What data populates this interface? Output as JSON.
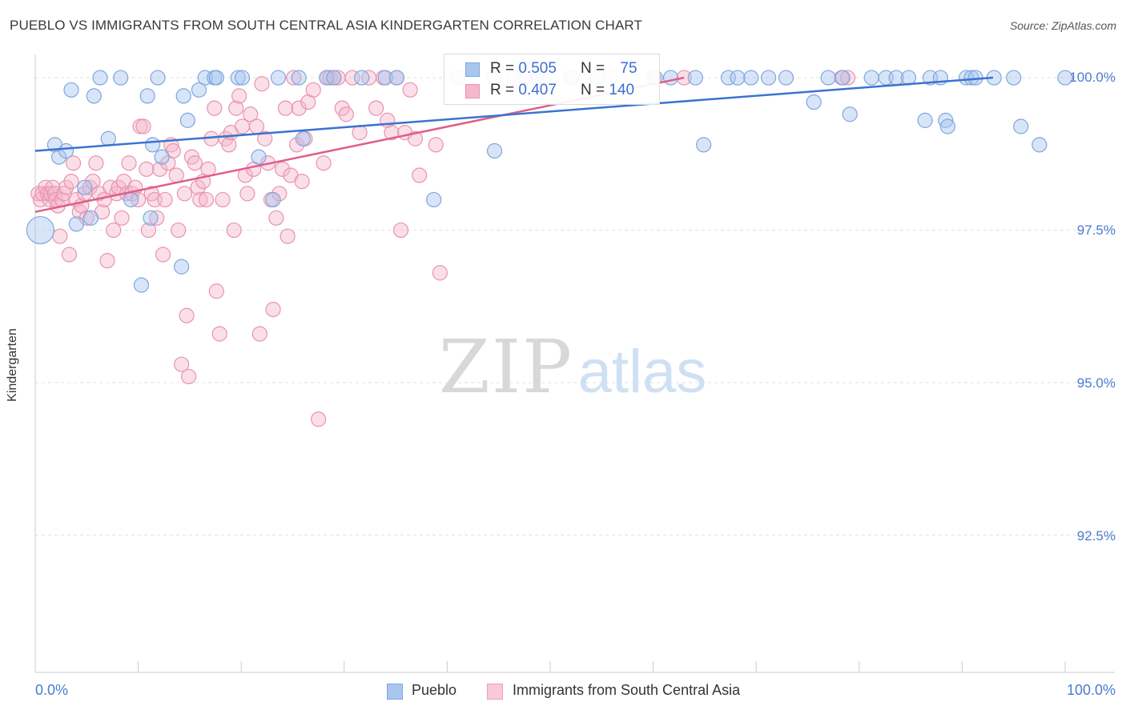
{
  "title": "PUEBLO VS IMMIGRANTS FROM SOUTH CENTRAL ASIA KINDERGARTEN CORRELATION CHART",
  "source": "Source: ZipAtlas.com",
  "watermark": {
    "zip": "ZIP",
    "atlas": "atlas"
  },
  "colors": {
    "blue_fill": "#a9c6ef",
    "blue_stroke": "#7fa6de",
    "blue_line": "#3b73d0",
    "pink_fill": "#f4b8cb",
    "pink_stroke": "#e993ae",
    "pink_line": "#e05d8a",
    "grid": "#e2e2e2",
    "axis_text": "#4a7bd0"
  },
  "legend": {
    "rows": [
      {
        "r_label": "R = ",
        "r_value": "0.505",
        "n_label": "N = ",
        "n_value": "75"
      },
      {
        "r_label": "R = ",
        "r_value": "0.407",
        "n_label": "N = ",
        "n_value": "140"
      }
    ]
  },
  "bottom_legend": {
    "series1": "Pueblo",
    "series2": "Immigrants from South Central Asia"
  },
  "axis": {
    "y_title": "Kindergarten",
    "x_min_label": "0.0%",
    "x_max_label": "100.0%",
    "y_tick_labels": [
      "100.0%",
      "97.5%",
      "95.0%",
      "92.5%"
    ]
  },
  "chart_data": {
    "type": "scatter",
    "title": "PUEBLO VS IMMIGRANTS FROM SOUTH CENTRAL ASIA KINDERGARTEN CORRELATION CHART",
    "xlabel": "",
    "ylabel": "Kindergarten",
    "xlim": [
      0,
      100
    ],
    "ylim": [
      90.25,
      100.25
    ],
    "y_ticks": [
      100.0,
      97.5,
      95.0,
      92.5
    ],
    "grid": true,
    "legend_position": "top-center",
    "series": [
      {
        "name": "Pueblo",
        "color": "blue",
        "R": 0.505,
        "N": 75,
        "trend": {
          "x": [
            0,
            93
          ],
          "y": [
            98.8,
            100.0
          ]
        },
        "points": [
          {
            "x": 0.5,
            "y": 97.5,
            "big": true
          },
          {
            "x": 1.9,
            "y": 98.9
          },
          {
            "x": 2.3,
            "y": 98.7
          },
          {
            "x": 3.0,
            "y": 98.8
          },
          {
            "x": 3.5,
            "y": 99.8
          },
          {
            "x": 4.0,
            "y": 97.6
          },
          {
            "x": 4.8,
            "y": 98.2
          },
          {
            "x": 5.4,
            "y": 97.7
          },
          {
            "x": 5.7,
            "y": 99.7
          },
          {
            "x": 6.3,
            "y": 100.0
          },
          {
            "x": 7.1,
            "y": 99.0
          },
          {
            "x": 8.3,
            "y": 100.0
          },
          {
            "x": 9.3,
            "y": 98.0
          },
          {
            "x": 10.3,
            "y": 96.6
          },
          {
            "x": 10.9,
            "y": 99.7
          },
          {
            "x": 11.2,
            "y": 97.7
          },
          {
            "x": 11.4,
            "y": 98.9
          },
          {
            "x": 11.9,
            "y": 100.0
          },
          {
            "x": 12.3,
            "y": 98.7
          },
          {
            "x": 14.2,
            "y": 96.9
          },
          {
            "x": 14.4,
            "y": 99.7
          },
          {
            "x": 14.8,
            "y": 99.3
          },
          {
            "x": 15.9,
            "y": 99.8
          },
          {
            "x": 16.5,
            "y": 100.0
          },
          {
            "x": 17.4,
            "y": 100.0
          },
          {
            "x": 17.6,
            "y": 100.0
          },
          {
            "x": 19.7,
            "y": 100.0
          },
          {
            "x": 20.1,
            "y": 100.0
          },
          {
            "x": 21.7,
            "y": 98.7
          },
          {
            "x": 23.1,
            "y": 98.0
          },
          {
            "x": 23.6,
            "y": 100.0
          },
          {
            "x": 25.6,
            "y": 100.0
          },
          {
            "x": 26.0,
            "y": 99.0
          },
          {
            "x": 28.3,
            "y": 100.0
          },
          {
            "x": 29.0,
            "y": 100.0
          },
          {
            "x": 31.7,
            "y": 100.0
          },
          {
            "x": 34.0,
            "y": 100.0
          },
          {
            "x": 35.1,
            "y": 100.0
          },
          {
            "x": 38.7,
            "y": 98.0
          },
          {
            "x": 41.0,
            "y": 100.0
          },
          {
            "x": 44.6,
            "y": 98.8
          },
          {
            "x": 48.8,
            "y": 100.0
          },
          {
            "x": 49.4,
            "y": 100.0
          },
          {
            "x": 52.0,
            "y": 100.0
          },
          {
            "x": 54.6,
            "y": 100.0
          },
          {
            "x": 60.2,
            "y": 100.0
          },
          {
            "x": 61.7,
            "y": 100.0
          },
          {
            "x": 64.1,
            "y": 100.0
          },
          {
            "x": 64.9,
            "y": 98.9
          },
          {
            "x": 67.3,
            "y": 100.0
          },
          {
            "x": 68.2,
            "y": 100.0
          },
          {
            "x": 69.5,
            "y": 100.0
          },
          {
            "x": 71.2,
            "y": 100.0
          },
          {
            "x": 72.9,
            "y": 100.0
          },
          {
            "x": 75.6,
            "y": 99.6
          },
          {
            "x": 77.0,
            "y": 100.0
          },
          {
            "x": 78.4,
            "y": 100.0
          },
          {
            "x": 79.1,
            "y": 99.4
          },
          {
            "x": 81.2,
            "y": 100.0
          },
          {
            "x": 82.6,
            "y": 100.0
          },
          {
            "x": 83.6,
            "y": 100.0
          },
          {
            "x": 84.8,
            "y": 100.0
          },
          {
            "x": 86.4,
            "y": 99.3
          },
          {
            "x": 86.9,
            "y": 100.0
          },
          {
            "x": 87.9,
            "y": 100.0
          },
          {
            "x": 88.4,
            "y": 99.3
          },
          {
            "x": 88.6,
            "y": 99.2
          },
          {
            "x": 90.4,
            "y": 100.0
          },
          {
            "x": 90.9,
            "y": 100.0
          },
          {
            "x": 91.3,
            "y": 100.0
          },
          {
            "x": 93.1,
            "y": 100.0
          },
          {
            "x": 95.0,
            "y": 100.0
          },
          {
            "x": 95.7,
            "y": 99.2
          },
          {
            "x": 97.5,
            "y": 98.9
          },
          {
            "x": 100.0,
            "y": 100.0
          }
        ]
      },
      {
        "name": "Immigrants from South Central Asia",
        "color": "pink",
        "R": 0.407,
        "N": 140,
        "trend": {
          "x": [
            0,
            63
          ],
          "y": [
            97.8,
            100.0
          ]
        },
        "points": [
          {
            "x": 0.3,
            "y": 98.1
          },
          {
            "x": 0.5,
            "y": 98.0
          },
          {
            "x": 0.7,
            "y": 98.1
          },
          {
            "x": 1.0,
            "y": 98.2
          },
          {
            "x": 1.2,
            "y": 98.1
          },
          {
            "x": 1.4,
            "y": 98.0
          },
          {
            "x": 1.5,
            "y": 98.1
          },
          {
            "x": 1.7,
            "y": 98.2
          },
          {
            "x": 1.9,
            "y": 98.1
          },
          {
            "x": 2.0,
            "y": 98.0
          },
          {
            "x": 2.2,
            "y": 97.9
          },
          {
            "x": 2.4,
            "y": 97.4
          },
          {
            "x": 2.6,
            "y": 98.0
          },
          {
            "x": 2.8,
            "y": 98.1
          },
          {
            "x": 3.0,
            "y": 98.2
          },
          {
            "x": 3.3,
            "y": 97.1
          },
          {
            "x": 3.5,
            "y": 98.3
          },
          {
            "x": 3.7,
            "y": 98.6
          },
          {
            "x": 4.0,
            "y": 98.0
          },
          {
            "x": 4.3,
            "y": 97.8
          },
          {
            "x": 4.5,
            "y": 97.9
          },
          {
            "x": 4.8,
            "y": 98.1
          },
          {
            "x": 5.0,
            "y": 97.7
          },
          {
            "x": 5.3,
            "y": 98.2
          },
          {
            "x": 5.6,
            "y": 98.3
          },
          {
            "x": 5.9,
            "y": 98.6
          },
          {
            "x": 6.2,
            "y": 98.1
          },
          {
            "x": 6.5,
            "y": 97.8
          },
          {
            "x": 6.7,
            "y": 98.0
          },
          {
            "x": 7.0,
            "y": 97.0
          },
          {
            "x": 7.3,
            "y": 98.2
          },
          {
            "x": 7.6,
            "y": 97.5
          },
          {
            "x": 7.9,
            "y": 98.1
          },
          {
            "x": 8.1,
            "y": 98.2
          },
          {
            "x": 8.4,
            "y": 97.7
          },
          {
            "x": 8.6,
            "y": 98.3
          },
          {
            "x": 8.9,
            "y": 98.1
          },
          {
            "x": 9.1,
            "y": 98.6
          },
          {
            "x": 9.4,
            "y": 98.1
          },
          {
            "x": 9.7,
            "y": 98.2
          },
          {
            "x": 10.0,
            "y": 98.0
          },
          {
            "x": 10.2,
            "y": 99.2
          },
          {
            "x": 10.5,
            "y": 99.2
          },
          {
            "x": 10.8,
            "y": 98.5
          },
          {
            "x": 11.0,
            "y": 97.5
          },
          {
            "x": 11.3,
            "y": 98.1
          },
          {
            "x": 11.6,
            "y": 98.0
          },
          {
            "x": 11.8,
            "y": 97.7
          },
          {
            "x": 12.1,
            "y": 98.5
          },
          {
            "x": 12.4,
            "y": 97.1
          },
          {
            "x": 12.6,
            "y": 98.0
          },
          {
            "x": 12.9,
            "y": 98.6
          },
          {
            "x": 13.2,
            "y": 98.9
          },
          {
            "x": 13.4,
            "y": 98.8
          },
          {
            "x": 13.7,
            "y": 98.4
          },
          {
            "x": 13.9,
            "y": 97.5
          },
          {
            "x": 14.2,
            "y": 95.3
          },
          {
            "x": 14.5,
            "y": 98.1
          },
          {
            "x": 14.7,
            "y": 96.1
          },
          {
            "x": 14.9,
            "y": 95.1
          },
          {
            "x": 15.2,
            "y": 98.7
          },
          {
            "x": 15.5,
            "y": 98.6
          },
          {
            "x": 15.8,
            "y": 98.2
          },
          {
            "x": 16.0,
            "y": 98.0
          },
          {
            "x": 16.3,
            "y": 98.3
          },
          {
            "x": 16.6,
            "y": 98.0
          },
          {
            "x": 16.8,
            "y": 98.5
          },
          {
            "x": 17.1,
            "y": 99.0
          },
          {
            "x": 17.4,
            "y": 99.5
          },
          {
            "x": 17.6,
            "y": 96.5
          },
          {
            "x": 17.9,
            "y": 95.8
          },
          {
            "x": 18.2,
            "y": 98.0
          },
          {
            "x": 18.5,
            "y": 99.0
          },
          {
            "x": 18.8,
            "y": 98.9
          },
          {
            "x": 19.0,
            "y": 99.1
          },
          {
            "x": 19.3,
            "y": 97.5
          },
          {
            "x": 19.5,
            "y": 99.5
          },
          {
            "x": 19.8,
            "y": 99.7
          },
          {
            "x": 20.1,
            "y": 99.2
          },
          {
            "x": 20.4,
            "y": 98.4
          },
          {
            "x": 20.6,
            "y": 98.1
          },
          {
            "x": 20.9,
            "y": 99.4
          },
          {
            "x": 21.2,
            "y": 98.5
          },
          {
            "x": 21.5,
            "y": 99.2
          },
          {
            "x": 21.8,
            "y": 95.8
          },
          {
            "x": 22.0,
            "y": 99.9
          },
          {
            "x": 22.3,
            "y": 99.0
          },
          {
            "x": 22.6,
            "y": 98.6
          },
          {
            "x": 22.9,
            "y": 98.0
          },
          {
            "x": 23.1,
            "y": 96.2
          },
          {
            "x": 23.4,
            "y": 97.7
          },
          {
            "x": 23.7,
            "y": 98.1
          },
          {
            "x": 24.0,
            "y": 98.5
          },
          {
            "x": 24.3,
            "y": 99.5
          },
          {
            "x": 24.5,
            "y": 97.4
          },
          {
            "x": 24.8,
            "y": 98.4
          },
          {
            "x": 25.1,
            "y": 100.0
          },
          {
            "x": 25.4,
            "y": 98.9
          },
          {
            "x": 25.6,
            "y": 99.5
          },
          {
            "x": 25.9,
            "y": 98.3
          },
          {
            "x": 26.2,
            "y": 99.0
          },
          {
            "x": 26.5,
            "y": 99.6
          },
          {
            "x": 27.0,
            "y": 99.8
          },
          {
            "x": 27.5,
            "y": 94.4
          },
          {
            "x": 28.0,
            "y": 98.6
          },
          {
            "x": 28.3,
            "y": 100.0
          },
          {
            "x": 28.6,
            "y": 100.0
          },
          {
            "x": 29.0,
            "y": 100.0
          },
          {
            "x": 29.4,
            "y": 100.0
          },
          {
            "x": 29.8,
            "y": 99.5
          },
          {
            "x": 30.2,
            "y": 99.4
          },
          {
            "x": 30.8,
            "y": 100.0
          },
          {
            "x": 31.5,
            "y": 99.1
          },
          {
            "x": 32.4,
            "y": 100.0
          },
          {
            "x": 33.1,
            "y": 99.5
          },
          {
            "x": 33.8,
            "y": 100.0
          },
          {
            "x": 34.2,
            "y": 99.3
          },
          {
            "x": 34.6,
            "y": 99.1
          },
          {
            "x": 35.1,
            "y": 100.0
          },
          {
            "x": 35.5,
            "y": 97.5
          },
          {
            "x": 35.9,
            "y": 99.1
          },
          {
            "x": 36.4,
            "y": 99.8
          },
          {
            "x": 36.9,
            "y": 99.0
          },
          {
            "x": 37.3,
            "y": 98.4
          },
          {
            "x": 38.9,
            "y": 98.9
          },
          {
            "x": 39.3,
            "y": 96.8
          },
          {
            "x": 44.6,
            "y": 100.0
          },
          {
            "x": 46.5,
            "y": 100.0
          },
          {
            "x": 47.5,
            "y": 100.0
          },
          {
            "x": 49.0,
            "y": 100.0
          },
          {
            "x": 52.1,
            "y": 100.0
          },
          {
            "x": 55.8,
            "y": 100.0
          },
          {
            "x": 60.0,
            "y": 100.0
          },
          {
            "x": 63.0,
            "y": 100.0
          },
          {
            "x": 78.3,
            "y": 100.0
          },
          {
            "x": 78.9,
            "y": 100.0
          }
        ]
      }
    ]
  }
}
